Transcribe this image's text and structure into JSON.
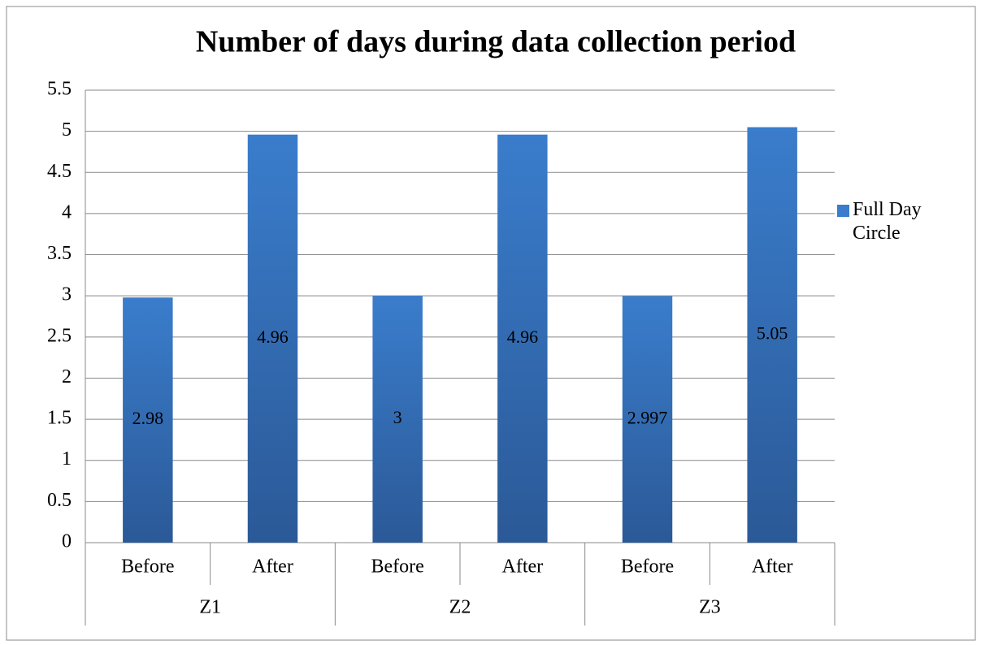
{
  "chart_data": {
    "type": "bar",
    "title": "Number of days during data collection period",
    "groups": [
      "Z1",
      "Z2",
      "Z3"
    ],
    "categories": [
      "Before",
      "After",
      "Before",
      "After",
      "Before",
      "After"
    ],
    "series": [
      {
        "name": "Full Day Circle",
        "color": "#3a7dcc",
        "values": [
          2.98,
          4.96,
          3,
          4.96,
          2.997,
          5.05
        ]
      }
    ],
    "ylim": [
      0,
      5.5
    ],
    "yticks": [
      0,
      0.5,
      1,
      1.5,
      2,
      2.5,
      3,
      3.5,
      4,
      4.5,
      5,
      5.5
    ],
    "grid": true,
    "legend": "right"
  }
}
